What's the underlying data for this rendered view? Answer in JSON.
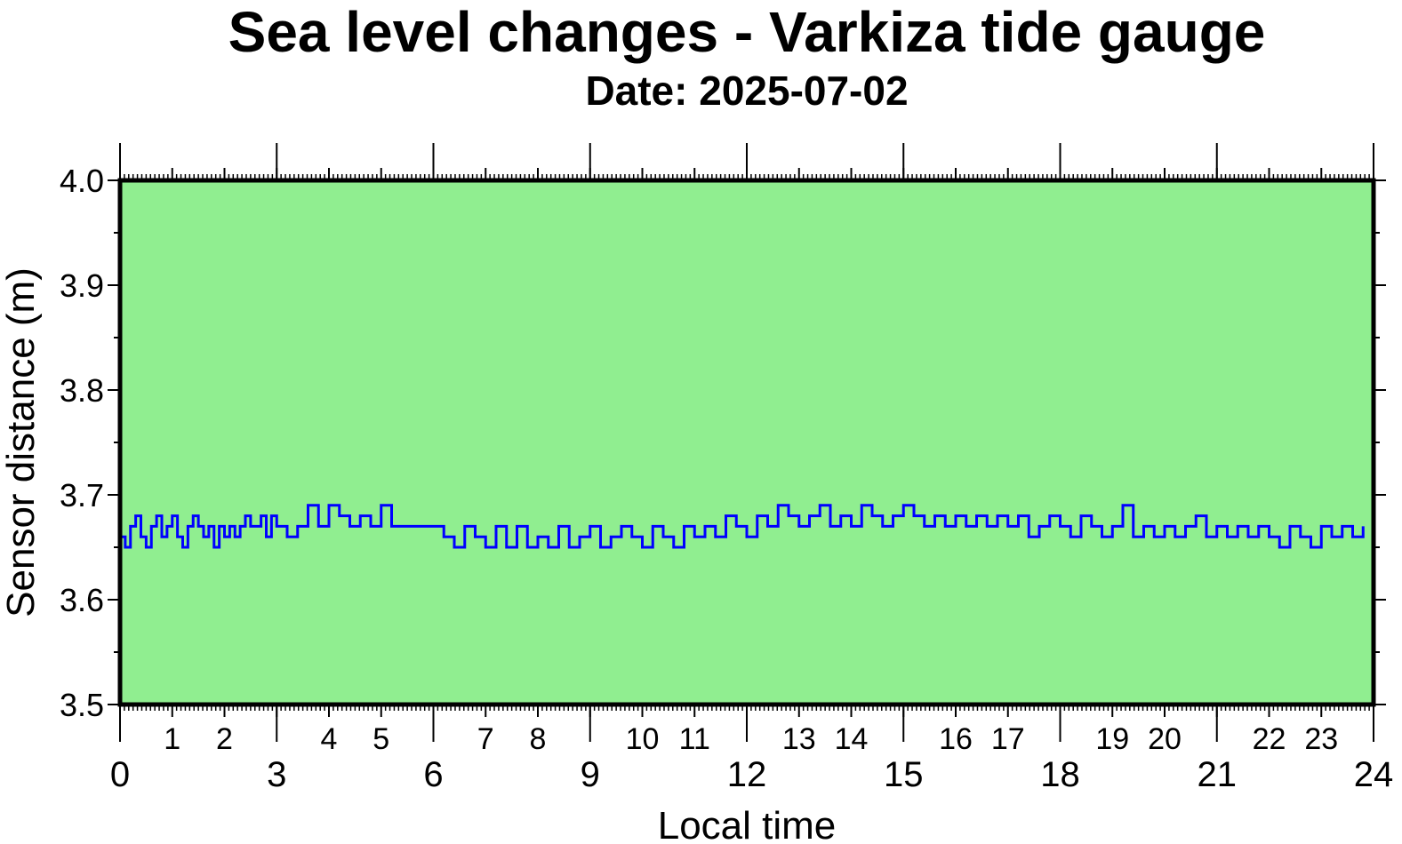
{
  "chart_data": {
    "type": "line",
    "title": "Sea level changes - Varkiza tide gauge",
    "subtitle": "Date: 2025-07-02",
    "xlabel": "Local time",
    "ylabel": "Sensor distance (m)",
    "xlim": [
      0,
      24
    ],
    "ylim": [
      3.5,
      4.0
    ],
    "major_x_ticks": [
      "0",
      "3",
      "6",
      "9",
      "12",
      "15",
      "18",
      "21",
      "24"
    ],
    "minor_x_ticks": [
      "1",
      "2",
      "4",
      "5",
      "7",
      "8",
      "10",
      "11",
      "13",
      "14",
      "16",
      "17",
      "19",
      "20",
      "22",
      "23"
    ],
    "y_ticks": [
      "3.5",
      "3.6",
      "3.7",
      "3.8",
      "3.9",
      "4.0"
    ],
    "grid": false,
    "colors": {
      "plot_background": "#90ee90",
      "line": "#0000ff",
      "frame": "#000000"
    },
    "series": [
      {
        "x": [
          0.0,
          0.1,
          0.2,
          0.3,
          0.4,
          0.5,
          0.6,
          0.7,
          0.8,
          0.9,
          1.0,
          1.1,
          1.2,
          1.3,
          1.4,
          1.5,
          1.6,
          1.7,
          1.8,
          1.9,
          2.0,
          2.1,
          2.2,
          2.3,
          2.4,
          2.5,
          2.6,
          2.7,
          2.8,
          2.9,
          3.0,
          3.2,
          3.4,
          3.6,
          3.8,
          4.0,
          4.2,
          4.4,
          4.6,
          4.8,
          5.0,
          5.2,
          5.4,
          5.6,
          5.8,
          6.0,
          6.2,
          6.4,
          6.6,
          6.8,
          7.0,
          7.2,
          7.4,
          7.6,
          7.8,
          8.0,
          8.2,
          8.4,
          8.6,
          8.8,
          9.0,
          9.2,
          9.4,
          9.6,
          9.8,
          10.0,
          10.2,
          10.4,
          10.6,
          10.8,
          11.0,
          11.2,
          11.4,
          11.6,
          11.8,
          12.0,
          12.2,
          12.4,
          12.6,
          12.8,
          13.0,
          13.2,
          13.4,
          13.6,
          13.8,
          14.0,
          14.2,
          14.4,
          14.6,
          14.8,
          15.0,
          15.2,
          15.4,
          15.6,
          15.8,
          16.0,
          16.2,
          16.4,
          16.6,
          16.8,
          17.0,
          17.2,
          17.4,
          17.6,
          17.8,
          18.0,
          18.2,
          18.4,
          18.6,
          18.8,
          19.0,
          19.2,
          19.4,
          19.6,
          19.8,
          20.0,
          20.2,
          20.4,
          20.6,
          20.8,
          21.0,
          21.2,
          21.4,
          21.6,
          21.8,
          22.0,
          22.2,
          22.4,
          22.6,
          22.8,
          23.0,
          23.2,
          23.4,
          23.6,
          23.8
        ],
        "values": [
          3.66,
          3.65,
          3.67,
          3.68,
          3.66,
          3.65,
          3.67,
          3.68,
          3.66,
          3.67,
          3.68,
          3.66,
          3.65,
          3.67,
          3.68,
          3.67,
          3.66,
          3.67,
          3.65,
          3.67,
          3.66,
          3.67,
          3.66,
          3.67,
          3.68,
          3.67,
          3.67,
          3.68,
          3.66,
          3.68,
          3.67,
          3.66,
          3.67,
          3.69,
          3.67,
          3.69,
          3.68,
          3.67,
          3.68,
          3.67,
          3.69,
          3.67,
          3.67,
          3.67,
          3.67,
          3.67,
          3.66,
          3.65,
          3.67,
          3.66,
          3.65,
          3.67,
          3.65,
          3.67,
          3.65,
          3.66,
          3.65,
          3.67,
          3.65,
          3.66,
          3.67,
          3.65,
          3.66,
          3.67,
          3.66,
          3.65,
          3.67,
          3.66,
          3.65,
          3.67,
          3.66,
          3.67,
          3.66,
          3.68,
          3.67,
          3.66,
          3.68,
          3.67,
          3.69,
          3.68,
          3.67,
          3.68,
          3.69,
          3.67,
          3.68,
          3.67,
          3.69,
          3.68,
          3.67,
          3.68,
          3.69,
          3.68,
          3.67,
          3.68,
          3.67,
          3.68,
          3.67,
          3.68,
          3.67,
          3.68,
          3.67,
          3.68,
          3.66,
          3.67,
          3.68,
          3.67,
          3.66,
          3.68,
          3.67,
          3.66,
          3.67,
          3.69,
          3.66,
          3.67,
          3.66,
          3.67,
          3.66,
          3.67,
          3.68,
          3.66,
          3.67,
          3.66,
          3.67,
          3.66,
          3.67,
          3.66,
          3.65,
          3.67,
          3.66,
          3.65,
          3.67,
          3.66,
          3.67,
          3.66,
          3.67
        ]
      }
    ]
  }
}
